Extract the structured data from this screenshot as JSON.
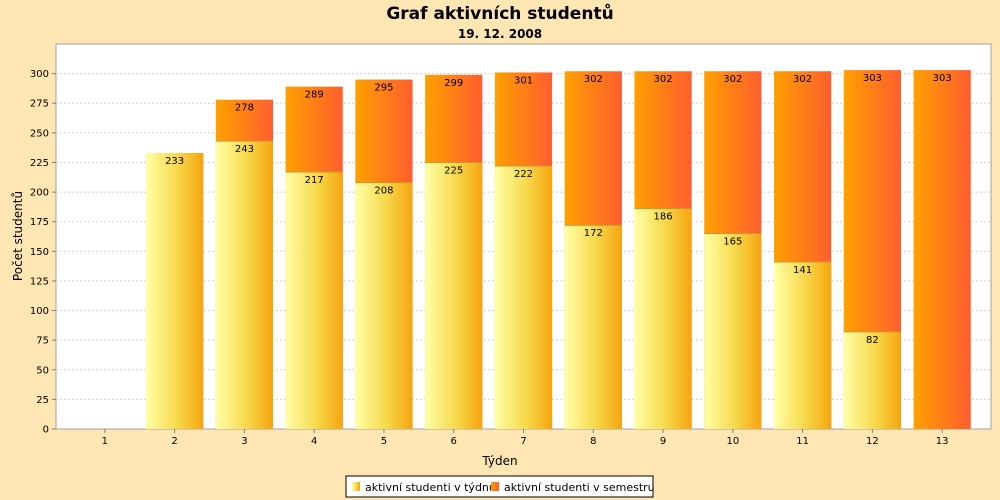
{
  "chart_data": {
    "type": "bar",
    "title": "Graf aktivních studentů",
    "subtitle": "19. 12. 2008",
    "xlabel": "Týden",
    "ylabel": "Počet studentů",
    "ylim": [
      0,
      325
    ],
    "yticks": [
      0,
      25,
      50,
      75,
      100,
      125,
      150,
      175,
      200,
      225,
      250,
      275,
      300
    ],
    "grid": true,
    "legend_position": "bottom",
    "categories": [
      "1",
      "2",
      "3",
      "4",
      "5",
      "6",
      "7",
      "8",
      "9",
      "10",
      "11",
      "12",
      "13"
    ],
    "series": [
      {
        "name": "aktivní studenti v týdnu",
        "color": "#F5D33A",
        "values": [
          null,
          233,
          243,
          217,
          208,
          225,
          222,
          172,
          186,
          165,
          141,
          82,
          null
        ]
      },
      {
        "name": "aktivní studenti v semestru",
        "color": "#FF6A2A",
        "values": [
          null,
          233,
          278,
          289,
          295,
          299,
          301,
          302,
          302,
          302,
          302,
          303,
          303
        ]
      }
    ]
  }
}
